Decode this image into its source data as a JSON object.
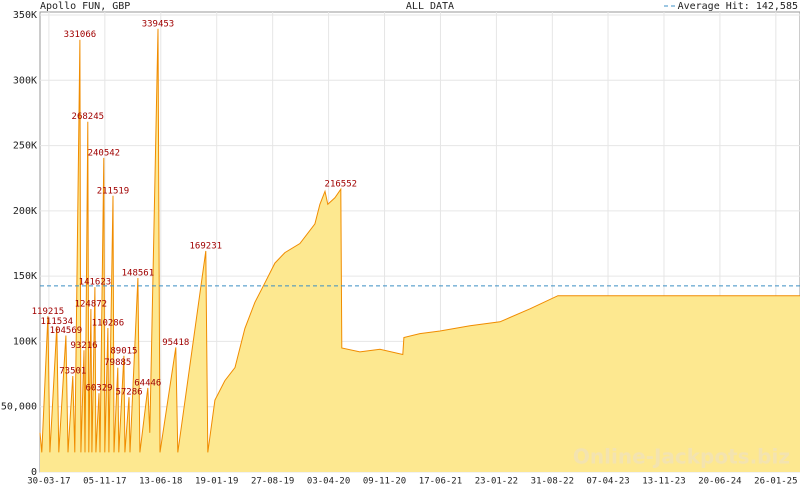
{
  "chart_data": {
    "type": "area",
    "title": "ALL DATA",
    "subtitle": "Apollo FUN, GBP",
    "watermark": "Online-Jackpots.biz",
    "average": {
      "label": "Average Hit: 142,585",
      "value": 142585,
      "color": "#3b8fc4"
    },
    "color": "#f08c00",
    "fill": "#fde890",
    "grid": true,
    "xlim": [
      "23-02-17",
      "01-05-25"
    ],
    "xticks": [
      "30-03-17",
      "05-11-17",
      "13-06-18",
      "19-01-19",
      "27-08-19",
      "03-04-20",
      "09-11-20",
      "17-06-21",
      "23-01-22",
      "31-08-22",
      "07-04-23",
      "13-11-23",
      "20-06-24",
      "26-01-25"
    ],
    "ylim": [
      0,
      350000
    ],
    "yticks": [
      0,
      {
        "value": 50000,
        "label": "50,000"
      },
      {
        "value": 100000,
        "label": "100K"
      },
      {
        "value": 150000,
        "label": "150K"
      },
      {
        "value": 200000,
        "label": "200K"
      },
      {
        "value": 250000,
        "label": "250K"
      },
      {
        "value": 300000,
        "label": "300K"
      },
      {
        "value": 350000,
        "label": "350K"
      }
    ],
    "x": [
      "23-02-17",
      "02-03-17",
      "26-03-17",
      "03-04-17",
      "30-04-17",
      "08-05-17",
      "05-06-17",
      "13-06-17",
      "02-07-17",
      "10-07-17",
      "30-07-17",
      "03-08-17",
      "15-08-17",
      "19-08-17",
      "30-08-17",
      "03-09-17",
      "11-09-17",
      "15-09-17",
      "27-09-17",
      "01-10-17",
      "13-10-17",
      "17-10-17",
      "01-11-17",
      "05-11-17",
      "17-11-17",
      "21-11-17",
      "07-12-17",
      "11-12-17",
      "26-12-17",
      "30-12-17",
      "19-01-18",
      "23-01-18",
      "08-02-18",
      "12-02-18",
      "15-03-18",
      "23-03-18",
      "23-04-18",
      "01-05-18",
      "02-06-18",
      "10-06-18",
      "11-08-18",
      "19-08-18",
      "07-12-18",
      "15-12-18",
      "12-01-19",
      "20-02-19",
      "01-04-19",
      "10-05-19",
      "18-06-19",
      "28-07-19",
      "05-09-19",
      "14-10-19",
      "12-12-19",
      "09-02-20",
      "29-02-20",
      "20-03-20",
      "31-03-20",
      "28-04-20",
      "21-05-20",
      "25-05-20",
      "04-08-20",
      "22-10-20",
      "20-01-21",
      "24-01-21",
      "28-03-21",
      "15-06-21",
      "11-10-21",
      "06-02-22",
      "04-06-22",
      "22-09-22",
      "01-05-25"
    ],
    "values": [
      30000,
      15000,
      119215,
      15000,
      111534,
      15000,
      104569,
      15000,
      73501,
      15000,
      331066,
      15000,
      93216,
      15000,
      268245,
      15000,
      124872,
      15000,
      141623,
      15000,
      60329,
      15000,
      240542,
      15000,
      110286,
      15000,
      211519,
      15000,
      79885,
      15000,
      89015,
      15000,
      57286,
      15000,
      148561,
      15000,
      64446,
      30000,
      339453,
      15000,
      95418,
      15000,
      169231,
      15000,
      55000,
      70000,
      80000,
      110000,
      130000,
      145000,
      160000,
      168000,
      175000,
      190000,
      205000,
      215000,
      205000,
      210000,
      216552,
      95000,
      92000,
      94000,
      90000,
      103000,
      106000,
      108000,
      112000,
      115000,
      125000,
      135000,
      135000
    ],
    "value_labels": [
      null,
      null,
      "119215",
      null,
      "111534",
      null,
      "104569",
      null,
      "73501",
      null,
      "331066",
      null,
      "93216",
      null,
      "268245",
      null,
      "124872",
      null,
      "141623",
      null,
      "60329",
      null,
      "240542",
      null,
      "110286",
      null,
      "211519",
      null,
      "79885",
      null,
      "89015",
      null,
      "57286",
      null,
      "148561",
      null,
      "64446",
      null,
      "339453",
      null,
      "95418",
      null,
      "169231",
      null,
      null,
      null,
      null,
      null,
      null,
      null,
      null,
      null,
      null,
      null,
      null,
      null,
      null,
      null,
      "216552",
      null,
      null,
      null,
      null,
      null,
      null,
      null,
      null,
      null,
      null,
      null,
      null
    ]
  }
}
